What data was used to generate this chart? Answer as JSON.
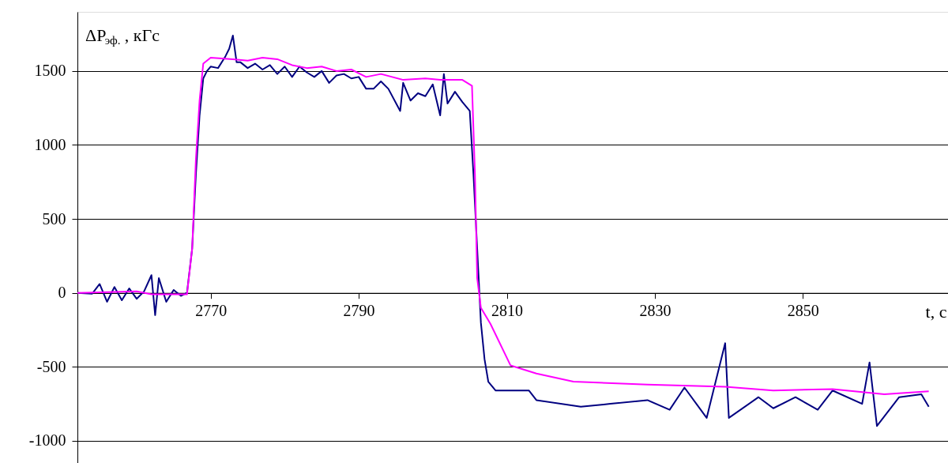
{
  "chart_data": {
    "type": "line",
    "ylabel": "ΔP$_{эф.}$, кГс",
    "xlabel": "t, c",
    "xlim": [
      2752,
      2869.6
    ],
    "ylim": [
      -1150,
      1900
    ],
    "xticks": [
      2770,
      2790,
      2810,
      2830,
      2850
    ],
    "yticks": [
      -1000,
      -500,
      0,
      500,
      1000,
      1500
    ],
    "grid": "y",
    "line_style": "solid",
    "marker": "none",
    "series": [
      {
        "color": "#000080",
        "x": [
          2752,
          2754,
          2755,
          2756,
          2757,
          2758,
          2759,
          2760,
          2761,
          2762,
          2762.5,
          2763,
          2764,
          2765,
          2766,
          2766.8,
          2767.5,
          2768,
          2768.5,
          2769,
          2769.5,
          2770,
          2771,
          2772,
          2772.5,
          2773,
          2773.5,
          2774,
          2775,
          2776,
          2777,
          2778,
          2779,
          2780,
          2781,
          2782,
          2783,
          2784,
          2785,
          2786,
          2787,
          2788,
          2789,
          2790,
          2791,
          2792,
          2793,
          2794,
          2795.6,
          2796,
          2797,
          2798,
          2799,
          2800,
          2801,
          2801.5,
          2802,
          2803,
          2804,
          2805,
          2805.5,
          2806,
          2806.5,
          2807,
          2807.5,
          2808.5,
          2813,
          2814,
          2820,
          2824,
          2829,
          2832,
          2834,
          2837,
          2839.5,
          2840,
          2844,
          2846,
          2849,
          2852,
          2854,
          2858,
          2859,
          2860,
          2863,
          2866,
          2867
        ],
        "values": [
          0,
          -5,
          60,
          -60,
          40,
          -50,
          30,
          -40,
          10,
          120,
          -150,
          100,
          -60,
          20,
          -20,
          0,
          300,
          800,
          1200,
          1450,
          1500,
          1530,
          1520,
          1600,
          1650,
          1740,
          1560,
          1560,
          1520,
          1550,
          1510,
          1540,
          1480,
          1530,
          1460,
          1530,
          1490,
          1460,
          1500,
          1420,
          1470,
          1480,
          1450,
          1460,
          1380,
          1380,
          1430,
          1380,
          1230,
          1420,
          1300,
          1350,
          1330,
          1410,
          1200,
          1480,
          1280,
          1360,
          1290,
          1230,
          800,
          300,
          -200,
          -450,
          -600,
          -660,
          -660,
          -725,
          -770,
          -750,
          -725,
          -790,
          -640,
          -845,
          -340,
          -845,
          -705,
          -780,
          -705,
          -790,
          -660,
          -750,
          -470,
          -900,
          -705,
          -685,
          -770
        ]
      },
      {
        "color": "#ff00ff",
        "x": [
          2752,
          2760,
          2762,
          2766.8,
          2767.5,
          2768,
          2768.5,
          2769,
          2770,
          2773,
          2775,
          2777,
          2779,
          2781,
          2783,
          2785,
          2787,
          2789,
          2791,
          2793,
          2796,
          2799,
          2801,
          2804,
          2805.3,
          2805.7,
          2806,
          2806.5,
          2807.8,
          2810.5,
          2814,
          2819,
          2829,
          2839.5,
          2846,
          2854,
          2861,
          2867
        ],
        "values": [
          0,
          10,
          -10,
          -10,
          300,
          900,
          1300,
          1550,
          1590,
          1580,
          1570,
          1590,
          1580,
          1540,
          1520,
          1530,
          1500,
          1510,
          1460,
          1480,
          1440,
          1450,
          1440,
          1440,
          1400,
          800,
          100,
          -100,
          -210,
          -490,
          -545,
          -600,
          -620,
          -635,
          -660,
          -650,
          -685,
          -665
        ]
      }
    ]
  }
}
